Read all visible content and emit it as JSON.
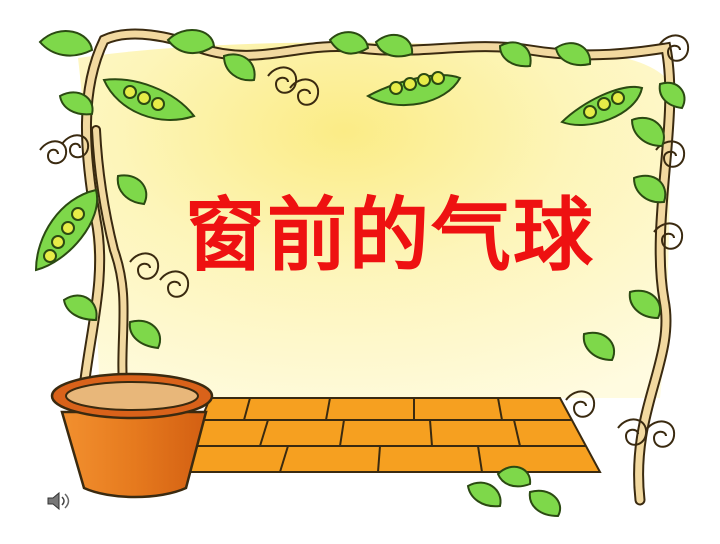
{
  "slide": {
    "title": "窗前的气球",
    "title_color": "#ee1111"
  },
  "colors": {
    "background": "#ffffff",
    "board_fill_light": "#fffcd6",
    "board_fill_warm": "#fbec86",
    "board_border": "#3a2a10",
    "leaf": "#7ed84a",
    "leaf_dark": "#4c9a2a",
    "pea": "#e7ec48",
    "vine": "#f2d9a0",
    "pot": "#e2731d",
    "pot_rim": "#d9621a",
    "soil": "#e8b77a",
    "floor": "#f6a020",
    "floor_line": "#3a2a10"
  },
  "icons": {
    "audio": "speaker-icon"
  }
}
